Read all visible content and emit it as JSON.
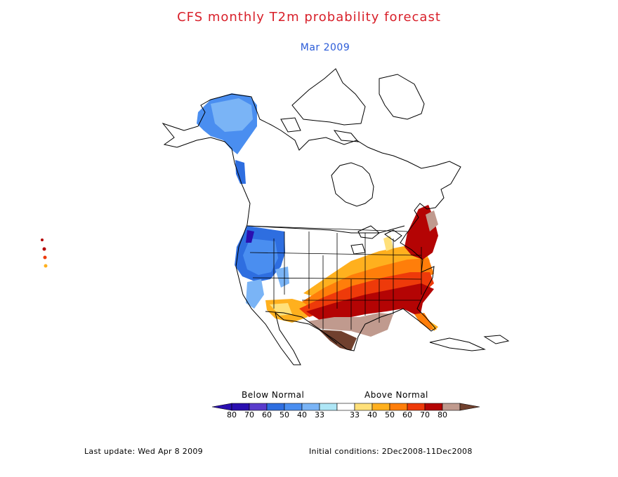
{
  "title": "CFS monthly T2m probability forecast",
  "subtitle": "Mar 2009",
  "colors": {
    "title": "#d8202a",
    "subtitle": "#2a5bd8",
    "below_80": "#2a0fb0",
    "below_70": "#5a3ccc",
    "below_60": "#2e6ee0",
    "below_50": "#4a8ef0",
    "below_40": "#7ab4f6",
    "below_33": "#aee6f6",
    "normal": "#ffffff",
    "above_33": "#ffe07a",
    "above_40": "#ffb01e",
    "above_50": "#ff7e0a",
    "above_60": "#ee3a0a",
    "above_70": "#b40404",
    "above_80": "#c09a8e",
    "above_max": "#70402e"
  },
  "legend": {
    "below_label": "Below Normal",
    "above_label": "Above Normal",
    "ticks": [
      "80",
      "70",
      "60",
      "50",
      "40",
      "33",
      "33",
      "40",
      "50",
      "60",
      "70",
      "80"
    ]
  },
  "footer": {
    "last_update": "Last update: Wed Apr 8 2009",
    "initial_conditions": "Initial conditions: 2Dec2008-11Dec2008"
  }
}
